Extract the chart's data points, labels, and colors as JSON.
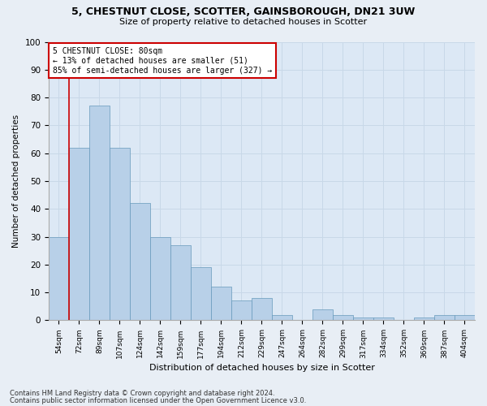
{
  "title1": "5, CHESTNUT CLOSE, SCOTTER, GAINSBOROUGH, DN21 3UW",
  "title2": "Size of property relative to detached houses in Scotter",
  "xlabel": "Distribution of detached houses by size in Scotter",
  "ylabel": "Number of detached properties",
  "categories": [
    "54sqm",
    "72sqm",
    "89sqm",
    "107sqm",
    "124sqm",
    "142sqm",
    "159sqm",
    "177sqm",
    "194sqm",
    "212sqm",
    "229sqm",
    "247sqm",
    "264sqm",
    "282sqm",
    "299sqm",
    "317sqm",
    "334sqm",
    "352sqm",
    "369sqm",
    "387sqm",
    "404sqm"
  ],
  "values": [
    30,
    62,
    77,
    62,
    42,
    30,
    27,
    19,
    12,
    7,
    8,
    2,
    0,
    4,
    2,
    1,
    1,
    0,
    1,
    2,
    2
  ],
  "bar_color": "#b8d0e8",
  "bar_edge_color": "#6699bb",
  "property_line_color": "#cc0000",
  "annotation_text": "5 CHESTNUT CLOSE: 80sqm\n← 13% of detached houses are smaller (51)\n85% of semi-detached houses are larger (327) →",
  "annotation_box_color": "#ffffff",
  "annotation_border_color": "#cc0000",
  "ylim": [
    0,
    100
  ],
  "yticks": [
    0,
    10,
    20,
    30,
    40,
    50,
    60,
    70,
    80,
    90,
    100
  ],
  "grid_color": "#c8d8e8",
  "background_color": "#dce8f5",
  "fig_background": "#e8eef5",
  "footer1": "Contains HM Land Registry data © Crown copyright and database right 2024.",
  "footer2": "Contains public sector information licensed under the Open Government Licence v3.0."
}
